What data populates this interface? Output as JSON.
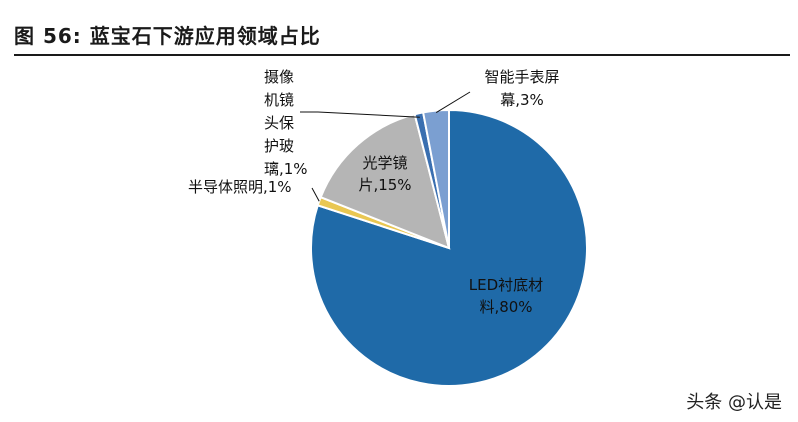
{
  "title": "图  56:  蓝宝石下游应用领域占比",
  "watermark": "头条 @认是",
  "chart_data": {
    "type": "pie",
    "title": "图 56: 蓝宝石下游应用领域占比",
    "slices": [
      {
        "name": "LED衬底材料",
        "value": 80,
        "label_lines": [
          "LED衬底材",
          "料,80%"
        ],
        "color": "#1f6aa8"
      },
      {
        "name": "半导体照明",
        "value": 1,
        "label_lines": [
          "半导体照明,1%"
        ],
        "color": "#e9c752"
      },
      {
        "name": "光学镜片",
        "value": 15,
        "label_lines": [
          "光学镜",
          "片,15%"
        ],
        "color": "#b5b5b5"
      },
      {
        "name": "摄像机镜头保护玻璃",
        "value": 1,
        "label_lines": [
          "摄像",
          "机镜",
          "头保",
          "护玻",
          "璃,1%"
        ],
        "color": "#3a6fb0"
      },
      {
        "name": "智能手表屏幕",
        "value": 3,
        "label_lines": [
          "智能手表屏",
          "幕,3%"
        ],
        "color": "#7b9fd1"
      }
    ],
    "slice_order_note_removed": true
  }
}
